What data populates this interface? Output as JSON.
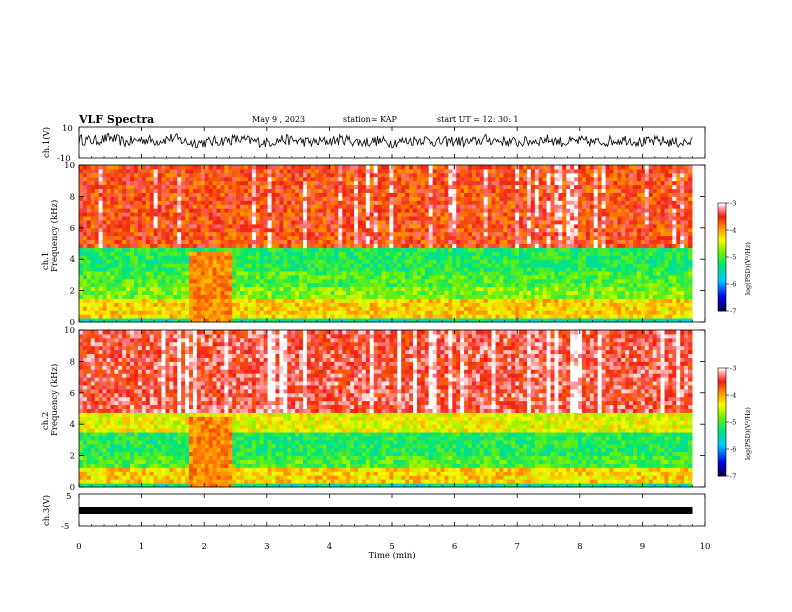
{
  "header": {
    "title": "VLF Spectra",
    "date": "May 9  , 2023",
    "station": "station= KAP",
    "start": "start  UT  =   12: 30: 1"
  },
  "chart_data": [
    {
      "type": "line",
      "panel": "ch1-waveform",
      "ylabel": "ch.1(V)",
      "ylim": [
        -10,
        10
      ],
      "yticks": [
        "10",
        "-10"
      ],
      "x": [
        0,
        0.25,
        0.5,
        0.75,
        1.0,
        1.25,
        1.5,
        1.75,
        2.0,
        2.25,
        2.5,
        2.75,
        3.0,
        3.25,
        3.5,
        3.75,
        4.0,
        4.25,
        4.5,
        4.75,
        5.0,
        5.25,
        5.5,
        5.75,
        6.0,
        6.25,
        6.5,
        6.75,
        7.0,
        7.25,
        7.5,
        7.75,
        8.0,
        8.25,
        8.5,
        8.75,
        9.0,
        9.25,
        9.5,
        9.8
      ],
      "y": [
        2,
        1,
        3,
        0,
        2,
        1,
        3,
        0,
        0,
        1,
        2,
        1,
        0,
        2,
        1,
        0,
        1,
        2,
        0,
        1,
        0,
        1,
        2,
        0,
        1,
        0,
        2,
        1,
        0,
        1,
        2,
        0,
        1,
        0,
        1,
        2,
        0,
        1,
        0,
        0
      ]
    },
    {
      "type": "heatmap",
      "panel": "ch1-spectrogram",
      "ylabel": [
        "ch.1",
        "Frequency  (kHz)"
      ],
      "ylim": [
        0,
        10
      ],
      "yticks": [
        "0",
        "2",
        "4",
        "6",
        "8",
        "10"
      ],
      "colorbar": {
        "label": "log(PSD)(V²/Hz)",
        "range": [
          -7,
          -3
        ],
        "ticks": [
          "-3",
          "-4",
          "-5",
          "-6",
          "-7"
        ]
      },
      "bands": [
        {
          "from": 0,
          "to": 0.3,
          "level": -5.5
        },
        {
          "from": 0.3,
          "to": 1.5,
          "level": -4.2
        },
        {
          "from": 1.5,
          "to": 2.2,
          "level": -4.8
        },
        {
          "from": 2.2,
          "to": 3.3,
          "level": -5.0
        },
        {
          "from": 3.3,
          "to": 4.7,
          "level": -5.2
        },
        {
          "from": 4.7,
          "to": 10,
          "level": -3.6
        }
      ],
      "interference": {
        "from": 1.75,
        "to": 2.4
      }
    },
    {
      "type": "heatmap",
      "panel": "ch2-spectrogram",
      "ylabel": [
        "ch.2",
        "Frequency  (kHz)"
      ],
      "ylim": [
        0,
        10
      ],
      "yticks": [
        "0",
        "2",
        "4",
        "6",
        "8",
        "10"
      ],
      "colorbar": {
        "label": "log(PSD)(V²/Hz)",
        "range": [
          -7,
          -3
        ],
        "ticks": [
          "-3",
          "-4",
          "-5",
          "-6",
          "-7"
        ]
      },
      "bands": [
        {
          "from": 0,
          "to": 0.3,
          "level": -5.5
        },
        {
          "from": 0.3,
          "to": 1.2,
          "level": -4.2
        },
        {
          "from": 1.2,
          "to": 2.0,
          "level": -5.0
        },
        {
          "from": 2.0,
          "to": 3.6,
          "level": -5.2
        },
        {
          "from": 3.6,
          "to": 4.8,
          "level": -4.4
        },
        {
          "from": 4.8,
          "to": 10,
          "level": -3.4
        }
      ],
      "interference": {
        "from": 1.75,
        "to": 2.4
      }
    },
    {
      "type": "line",
      "panel": "ch3-waveform",
      "ylabel": "ch.3(V)",
      "ylim": [
        -5,
        5
      ],
      "yticks": [
        "5",
        "-5"
      ],
      "x": [
        0,
        9.8
      ],
      "y": [
        0,
        0
      ]
    }
  ],
  "xaxis": {
    "label": "Time  (min)",
    "range": [
      0,
      10
    ],
    "ticks": [
      "0",
      "1",
      "2",
      "3",
      "4",
      "5",
      "6",
      "7",
      "8",
      "9",
      "10"
    ]
  }
}
